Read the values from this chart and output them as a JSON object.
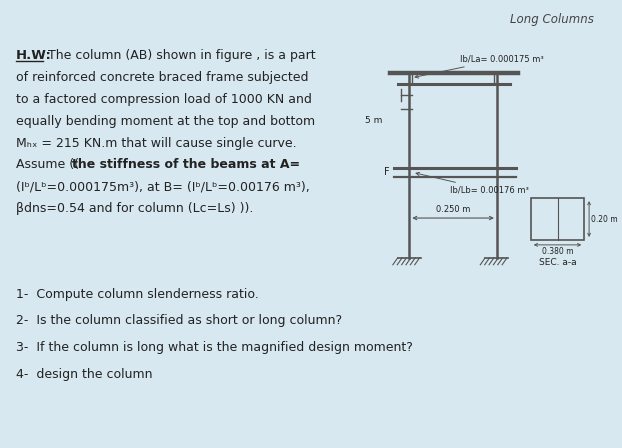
{
  "bg_color": "#d8e8f0",
  "title": "Long Columns",
  "title_fontsize": 8.5,
  "hw_label": "H.W:",
  "lines": [
    " The column (AB) shown in figure , is a part",
    "of reinforced concrete braced frame subjected",
    "to a factored compression load of 1000 KN and",
    "equally bending moment at the top and bottom",
    "Mₕₓ = 215 KN.m that will cause single curve.",
    "Assume ((the stiffness of the beams at A=",
    "(Iᵇ/Lᵇ=0.000175m³), at B= (Iᵇ/Lᵇ=0.00176 m³),",
    "βdns=0.54 and for column (Lc=Ls) ))."
  ],
  "questions": [
    "1-  Compute column slenderness ratio.",
    "2-  Is the column classified as short or long column?",
    "3-  If the column is long what is the magnified design moment?",
    "4-  design the column"
  ],
  "annotation_top": "Ib/La= 0.000175 m³",
  "annotation_mid": "Ib/Lb= 0.00176 m³",
  "dim_col": "0.250 m",
  "dim_width": "0.380 m",
  "dim_height": "0.20 m",
  "sec_label": "SEC. a-a",
  "col_color": "#555555",
  "text_color": "#222222"
}
